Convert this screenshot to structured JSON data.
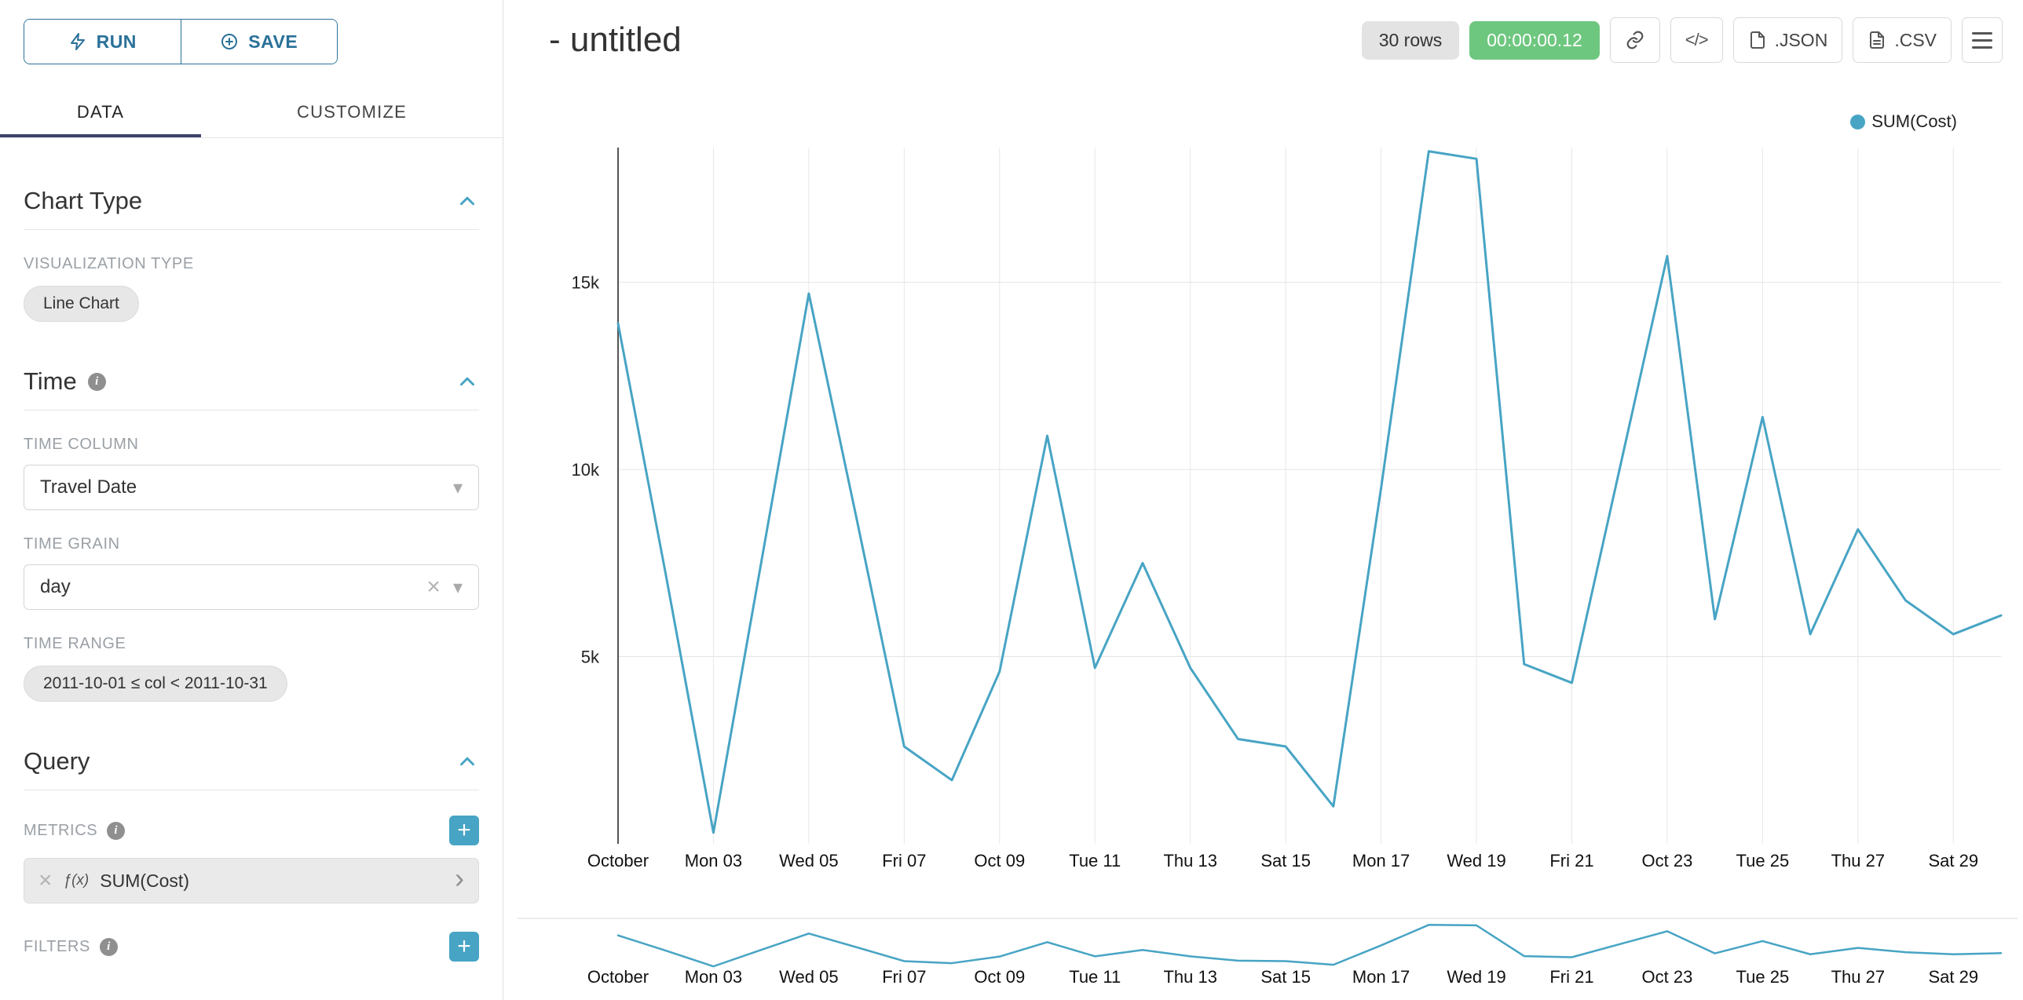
{
  "colors": {
    "accent": "#47a4c4",
    "timer_green": "#6ec77f",
    "run_save_blue": "#2a7199",
    "tab_underline": "#3f4368"
  },
  "icons": {
    "clear": "×",
    "caret": "▾",
    "plus": "+",
    "chevron_right": "›"
  },
  "sidebar": {
    "run_button": "RUN",
    "save_button": "SAVE",
    "tabs": {
      "data": "DATA",
      "customize": "CUSTOMIZE"
    },
    "chart_type_section": {
      "title": "Chart Type",
      "visualization_type_label": "VISUALIZATION TYPE",
      "visualization_type_value": "Line Chart"
    },
    "time_section": {
      "title": "Time",
      "time_column_label": "TIME COLUMN",
      "time_column_value": "Travel Date",
      "time_grain_label": "TIME GRAIN",
      "time_grain_value": "day",
      "time_range_label": "TIME RANGE",
      "time_range_value": "2011-10-01 ≤ col < 2011-10-31"
    },
    "query_section": {
      "title": "Query",
      "metrics_label": "METRICS",
      "metric_fx": "ƒ(x)",
      "metric_value": "SUM(Cost)",
      "filters_label": "FILTERS"
    }
  },
  "header": {
    "title": "- untitled",
    "rows_badge": "30 rows",
    "timer_badge": "00:00:00.12",
    "code_button": "</>",
    "json_button": ".JSON",
    "csv_button": ".CSV"
  },
  "chart_data": {
    "type": "line",
    "title": "- untitled",
    "legend": [
      {
        "name": "SUM(Cost)",
        "color": "#47a4c4"
      }
    ],
    "legend_position": "top-right",
    "grid": true,
    "context_brush": true,
    "x": [
      "2011-10-01",
      "2011-10-02",
      "2011-10-03",
      "2011-10-04",
      "2011-10-05",
      "2011-10-06",
      "2011-10-07",
      "2011-10-08",
      "2011-10-09",
      "2011-10-10",
      "2011-10-11",
      "2011-10-12",
      "2011-10-13",
      "2011-10-14",
      "2011-10-15",
      "2011-10-16",
      "2011-10-17",
      "2011-10-18",
      "2011-10-19",
      "2011-10-20",
      "2011-10-21",
      "2011-10-22",
      "2011-10-23",
      "2011-10-24",
      "2011-10-25",
      "2011-10-26",
      "2011-10-27",
      "2011-10-28",
      "2011-10-29",
      "2011-10-30"
    ],
    "series": [
      {
        "name": "SUM(Cost)",
        "values": [
          13900,
          7200,
          300,
          7500,
          14700,
          8700,
          2600,
          1700,
          4600,
          10900,
          4700,
          7500,
          4700,
          2800,
          2600,
          1000,
          9500,
          18500,
          18300,
          4800,
          4300,
          10000,
          15700,
          6000,
          11400,
          5600,
          8400,
          6500,
          5600,
          6100
        ]
      }
    ],
    "x_tick_indices": [
      0,
      2,
      4,
      6,
      8,
      10,
      12,
      14,
      16,
      18,
      20,
      22,
      24,
      26,
      28
    ],
    "x_tick_labels": [
      "October",
      "Mon 03",
      "Wed 05",
      "Fri 07",
      "Oct 09",
      "Tue 11",
      "Thu 13",
      "Sat 15",
      "Mon 17",
      "Wed 19",
      "Fri 21",
      "Oct 23",
      "Tue 25",
      "Thu 27",
      "Sat 29"
    ],
    "y_ticks": [
      5000,
      10000,
      15000
    ],
    "y_tick_labels": [
      "5k",
      "10k",
      "15k"
    ],
    "ylim": [
      0,
      18600
    ],
    "xlabel": "",
    "ylabel": ""
  }
}
